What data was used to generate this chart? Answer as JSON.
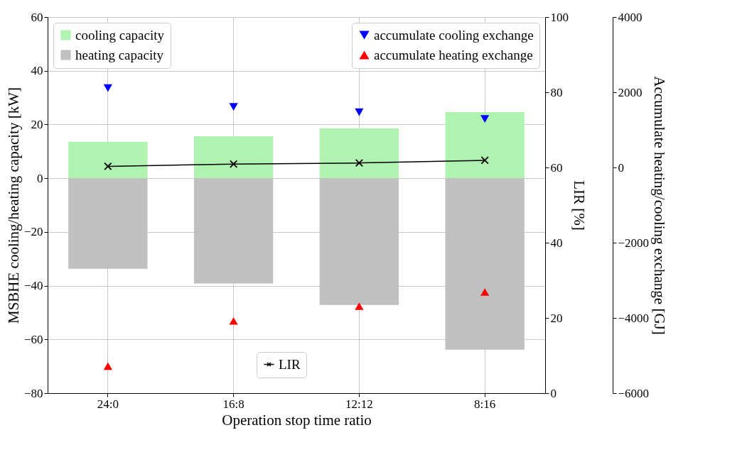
{
  "chart_data": {
    "type": "bar",
    "stacked": true,
    "xlabel": "Operation stop time ratio",
    "ylabel": "MSBHE cooling/heating capacity [kW]",
    "y2label": "LIR [%]",
    "y3label": "Accumulate heating/cooling exchange [GJ]",
    "categories": [
      "24:0",
      "16:8",
      "12:12",
      "8:16"
    ],
    "series": [
      {
        "name": "cooling capacity",
        "color": "#b0f2b0",
        "values": [
          13.6,
          15.6,
          18.6,
          24.6
        ]
      },
      {
        "name": "heating capacity",
        "color": "#c0c0c0",
        "values": [
          -33.7,
          -39.2,
          -47.2,
          -63.8
        ]
      },
      {
        "name": "LIR",
        "type": "line",
        "axis": "y2",
        "color": "#000000",
        "marker": "cross",
        "line_style": "solid",
        "values": [
          60.3,
          60.9,
          61.2,
          61.9
        ]
      },
      {
        "name": "accumulate cooling exchange",
        "type": "scatter",
        "axis": "y3",
        "color": "#0000ff",
        "marker": "triangle-down",
        "values": [
          2110,
          1610,
          1470,
          1290
        ]
      },
      {
        "name": "accumulate heating exchange",
        "type": "scatter",
        "axis": "y3",
        "color": "#ff0000",
        "marker": "triangle",
        "values": [
          -5280,
          -4080,
          -3690,
          -3310
        ]
      }
    ],
    "legend": [
      "top left",
      "bottom",
      "top right"
    ],
    "ylim": [
      -80,
      60
    ],
    "yticks": [
      {
        "value": -80,
        "label": "−80"
      },
      {
        "value": -60,
        "label": "−60"
      },
      {
        "value": -40,
        "label": "−40"
      },
      {
        "value": -20,
        "label": "−20"
      },
      0,
      20,
      40,
      60
    ],
    "y2lim": [
      0,
      100
    ],
    "y2ticks": [
      0,
      20,
      40,
      60,
      80,
      100
    ],
    "y3lim": [
      -6000,
      4000
    ],
    "y3ticks": [
      {
        "value": -6000,
        "label": "−6000"
      },
      {
        "value": -4000,
        "label": "−4000"
      },
      {
        "value": -2000,
        "label": "−2000"
      },
      0,
      2000,
      4000
    ],
    "grid": true
  }
}
